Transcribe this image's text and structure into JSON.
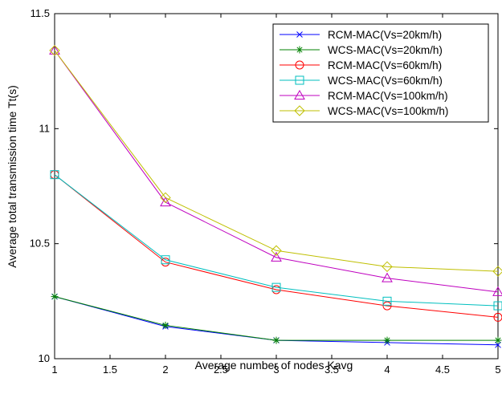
{
  "chart_data": {
    "type": "line",
    "title": "",
    "xlabel": "Average number of nodes Kavg",
    "ylabel": "Average total transmission time Tt(s)",
    "xlim": [
      1,
      5
    ],
    "ylim": [
      10,
      11.5
    ],
    "xticks": [
      "1",
      "1.5",
      "2",
      "2.5",
      "3",
      "3.5",
      "4",
      "4.5",
      "5"
    ],
    "yticks": [
      "10",
      "10.5",
      "11",
      "11.5"
    ],
    "grid": false,
    "legend_position": "top-right",
    "x": [
      1,
      2,
      3,
      4,
      5
    ],
    "series": [
      {
        "name": "RCM-MAC(Vs=20km/h)",
        "values": [
          10.27,
          10.14,
          10.08,
          10.07,
          10.06
        ],
        "color": "#0000ff",
        "marker": "x"
      },
      {
        "name": "WCS-MAC(Vs=20km/h)",
        "values": [
          10.27,
          10.145,
          10.08,
          10.08,
          10.08
        ],
        "color": "#008000",
        "marker": "star"
      },
      {
        "name": "RCM-MAC(Vs=60km/h)",
        "values": [
          10.8,
          10.42,
          10.3,
          10.23,
          10.18
        ],
        "color": "#ff0000",
        "marker": "circle"
      },
      {
        "name": "WCS-MAC(Vs=60km/h)",
        "values": [
          10.8,
          10.43,
          10.31,
          10.25,
          10.23
        ],
        "color": "#00bfbf",
        "marker": "square"
      },
      {
        "name": "RCM-MAC(Vs=100km/h)",
        "values": [
          11.34,
          10.68,
          10.44,
          10.35,
          10.29
        ],
        "color": "#bf00bf",
        "marker": "triangle"
      },
      {
        "name": "WCS-MAC(Vs=100km/h)",
        "values": [
          11.34,
          10.7,
          10.47,
          10.4,
          10.38
        ],
        "color": "#bfbf00",
        "marker": "diamond"
      }
    ]
  }
}
